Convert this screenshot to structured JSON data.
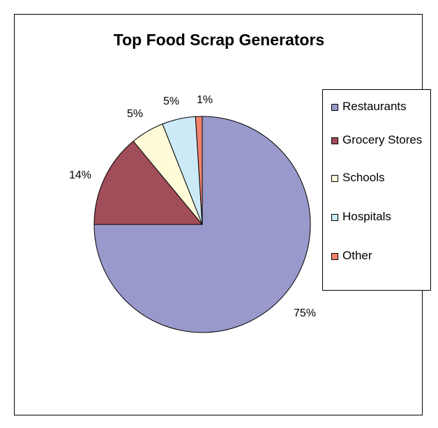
{
  "chart_data": {
    "type": "pie",
    "title": "Top Food Scrap Generators",
    "slices": [
      {
        "label": "Restaurants",
        "value": 75,
        "display": "75%",
        "color": "#9999cc"
      },
      {
        "label": "Grocery Stores",
        "value": 14,
        "display": "14%",
        "color": "#a24d5a"
      },
      {
        "label": "Schools",
        "value": 5,
        "display": "5%",
        "color": "#fffbd9"
      },
      {
        "label": "Hospitals",
        "value": 5,
        "display": "5%",
        "color": "#cce9f7"
      },
      {
        "label": "Other",
        "value": 1,
        "display": "1%",
        "color": "#f2826e"
      }
    ],
    "legend_position": "right"
  }
}
